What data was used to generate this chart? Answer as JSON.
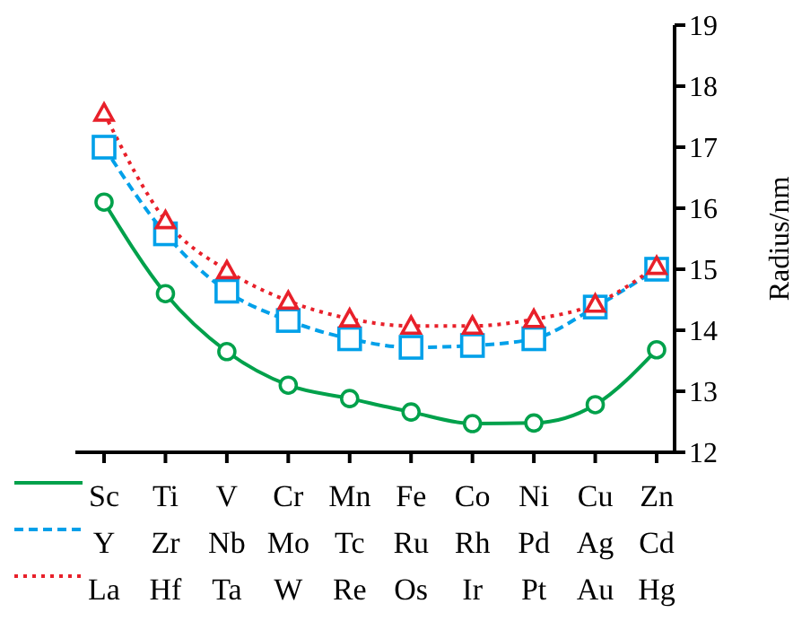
{
  "chart_data": {
    "type": "line",
    "ylabel": "Radius/nm",
    "categories": [
      "Sc\nY\nLa",
      "Ti\nZr\nHf",
      "V\nNb\nTa",
      "Cr\nMo\nW",
      "Mn\nTc\nRe",
      "Fe\nRu\nOs",
      "Co\nRh\nIr",
      "Ni\nPd\nPt",
      "Cu\nAg\nAu",
      "Zn\nCd\nHg"
    ],
    "series": [
      {
        "color": "#00a14b",
        "marker": "circle",
        "line_style": "solid",
        "values": [
          16.1,
          14.6,
          13.65,
          13.1,
          12.88,
          12.66,
          12.47,
          12.48,
          12.78,
          13.68
        ]
      },
      {
        "color": "#00a0e9",
        "marker": "square",
        "line_style": "dashed",
        "values": [
          17.0,
          15.58,
          14.64,
          14.16,
          13.86,
          13.72,
          13.75,
          13.86,
          14.38,
          15.0
        ]
      },
      {
        "color": "#e8202a",
        "marker": "triangle",
        "line_style": "dotted",
        "values": [
          17.56,
          15.8,
          14.98,
          14.48,
          14.19,
          14.07,
          14.07,
          14.18,
          14.43,
          15.05
        ]
      }
    ],
    "ylim": [
      12,
      19
    ],
    "yticks": [
      12,
      13,
      14,
      15,
      16,
      17,
      18,
      19
    ],
    "grid": false
  }
}
